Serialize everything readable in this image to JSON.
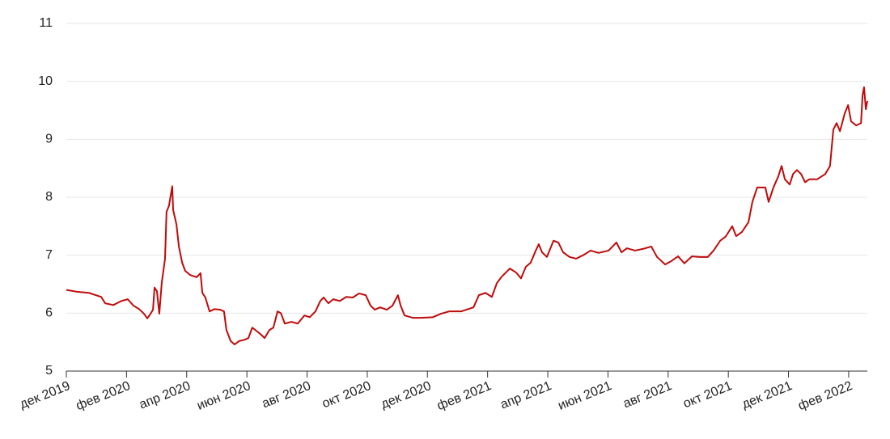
{
  "chart_data": {
    "type": "line",
    "x": [
      0,
      0.35,
      0.75,
      1.16,
      1.29,
      1.56,
      1.83,
      2.04,
      2.23,
      2.42,
      2.58,
      2.69,
      2.8,
      2.88,
      2.93,
      3.01,
      3.09,
      3.17,
      3.28,
      3.33,
      3.41,
      3.5,
      3.52,
      3.55,
      3.66,
      3.74,
      3.85,
      3.95,
      4.11,
      4.33,
      4.46,
      4.52,
      4.62,
      4.76,
      4.92,
      5.11,
      5.24,
      5.32,
      5.46,
      5.59,
      5.75,
      5.92,
      6.05,
      6.18,
      6.35,
      6.45,
      6.59,
      6.75,
      6.88,
      7.02,
      7.13,
      7.26,
      7.48,
      7.69,
      7.91,
      8.09,
      8.28,
      8.44,
      8.55,
      8.71,
      8.87,
      9.09,
      9.3,
      9.52,
      9.73,
      9.95,
      10.11,
      10.25,
      10.43,
      10.65,
      10.84,
      11.02,
      11.11,
      11.24,
      11.51,
      11.78,
      12.18,
      12.45,
      12.72,
      13.12,
      13.53,
      13.71,
      13.93,
      14.14,
      14.31,
      14.47,
      14.74,
      14.95,
      15.11,
      15.27,
      15.43,
      15.6,
      15.7,
      15.81,
      15.97,
      16.19,
      16.35,
      16.51,
      16.72,
      16.94,
      17.21,
      17.42,
      17.69,
      18.02,
      18.28,
      18.45,
      18.63,
      18.9,
      19.17,
      19.44,
      19.63,
      19.9,
      20.11,
      20.33,
      20.54,
      20.79,
      21.05,
      21.32,
      21.51,
      21.73,
      21.91,
      22.13,
      22.26,
      22.45,
      22.67,
      22.8,
      22.96,
      23.23,
      23.34,
      23.5,
      23.66,
      23.77,
      23.88,
      24.04,
      24.15,
      24.28,
      24.42,
      24.55,
      24.69,
      24.95,
      25.22,
      25.38,
      25.49,
      25.6,
      25.71,
      25.87,
      25.98,
      26.08,
      26.25,
      26.41,
      26.46,
      26.51,
      26.57,
      26.62
    ],
    "series": [
      {
        "color": "#c00a0a",
        "values": [
          6.4,
          6.37,
          6.35,
          6.28,
          6.17,
          6.14,
          6.21,
          6.24,
          6.13,
          6.07,
          5.99,
          5.91,
          5.99,
          6.06,
          6.44,
          6.38,
          5.99,
          6.52,
          6.94,
          7.75,
          7.85,
          8.13,
          8.19,
          7.78,
          7.53,
          7.15,
          6.87,
          6.73,
          6.66,
          6.62,
          6.69,
          6.35,
          6.27,
          6.03,
          6.07,
          6.06,
          6.03,
          5.71,
          5.52,
          5.46,
          5.52,
          5.54,
          5.57,
          5.75,
          5.68,
          5.64,
          5.57,
          5.71,
          5.75,
          6.03,
          6.0,
          5.82,
          5.85,
          5.82,
          5.96,
          5.93,
          6.03,
          6.21,
          6.27,
          6.17,
          6.24,
          6.21,
          6.28,
          6.27,
          6.34,
          6.31,
          6.13,
          6.06,
          6.1,
          6.06,
          6.13,
          6.31,
          6.13,
          5.96,
          5.92,
          5.92,
          5.93,
          5.99,
          6.03,
          6.03,
          6.1,
          6.31,
          6.35,
          6.28,
          6.52,
          6.63,
          6.77,
          6.7,
          6.6,
          6.8,
          6.87,
          7.08,
          7.19,
          7.05,
          6.97,
          7.25,
          7.22,
          7.05,
          6.97,
          6.94,
          7.01,
          7.08,
          7.04,
          7.08,
          7.22,
          7.05,
          7.12,
          7.08,
          7.11,
          7.15,
          6.97,
          6.84,
          6.9,
          6.98,
          6.86,
          6.98,
          6.97,
          6.97,
          7.08,
          7.25,
          7.32,
          7.5,
          7.33,
          7.4,
          7.57,
          7.92,
          8.17,
          8.17,
          7.92,
          8.17,
          8.36,
          8.54,
          8.31,
          8.22,
          8.4,
          8.47,
          8.4,
          8.26,
          8.31,
          8.31,
          8.4,
          8.54,
          9.17,
          9.28,
          9.14,
          9.45,
          9.59,
          9.31,
          9.24,
          9.28,
          9.76,
          9.9,
          9.52,
          9.66
        ]
      }
    ],
    "xlim": [
      0,
      26.62
    ],
    "xticks": [
      {
        "value": 0,
        "label": "дек 2019"
      },
      {
        "value": 2,
        "label": "фев 2020"
      },
      {
        "value": 4,
        "label": "апр 2020"
      },
      {
        "value": 6,
        "label": "июн 2020"
      },
      {
        "value": 8,
        "label": "авг 2020"
      },
      {
        "value": 10,
        "label": "окт 2020"
      },
      {
        "value": 12,
        "label": "дек 2020"
      },
      {
        "value": 14,
        "label": "фев 2021"
      },
      {
        "value": 16,
        "label": "апр 2021"
      },
      {
        "value": 18,
        "label": "июн 2021"
      },
      {
        "value": 20,
        "label": "авг 2021"
      },
      {
        "value": 22,
        "label": "окт 2021"
      },
      {
        "value": 24,
        "label": "дек 2021"
      },
      {
        "value": 26,
        "label": "фев 2022"
      }
    ],
    "ylim": [
      5,
      11
    ],
    "yticks": [
      5,
      6,
      7,
      8,
      9,
      10,
      11
    ],
    "grid": true
  }
}
